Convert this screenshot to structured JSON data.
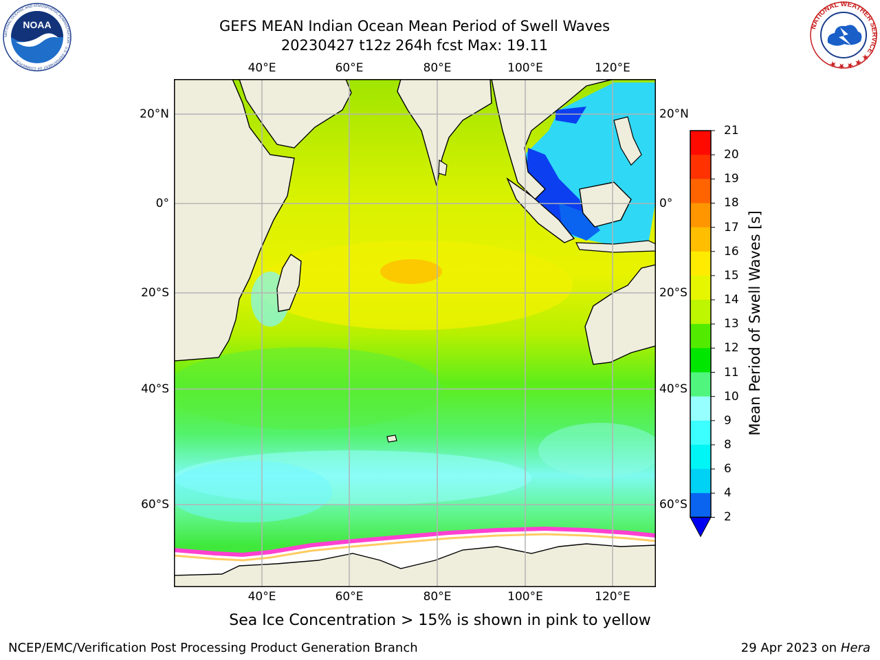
{
  "title": {
    "line1": "GEFS MEAN Indian Ocean Mean Period of Swell Waves",
    "line2": "20230427 t12z 264h fcst   Max: 19.11"
  },
  "logos": {
    "left_org": "NOAA",
    "left_ring": "NATIONAL OCEANIC AND ATMOSPHERIC ADMINISTRATION · U.S. DEPARTMENT OF COMMERCE ·",
    "right_ring": "NATIONAL WEATHER SERVICE ★ ★ ★ ★ ★"
  },
  "map": {
    "region": "Indian Ocean",
    "lon_ticks": [
      "40°E",
      "60°E",
      "80°E",
      "100°E",
      "120°E"
    ],
    "lat_ticks": [
      "20°N",
      "0°",
      "20°S",
      "40°S",
      "60°S"
    ],
    "lon_values": [
      40,
      60,
      80,
      100,
      120
    ],
    "lat_values": [
      20,
      0,
      -20,
      -40,
      -60
    ],
    "lon_range": [
      20,
      130
    ],
    "lat_range": [
      -78,
      27
    ],
    "colors": {
      "land": "#efeedd",
      "ice": "#ffffff",
      "grid": "#b3b3b3",
      "coast": "#000000"
    }
  },
  "colorbar": {
    "title": "Mean Period of Swell Waves [s]",
    "levels": [
      "2",
      "4",
      "6",
      "8",
      "9",
      "10",
      "11",
      "12",
      "13",
      "14",
      "15",
      "16",
      "17",
      "18",
      "19",
      "20",
      "21"
    ],
    "colors": [
      "#0a64f0",
      "#00d2f5",
      "#00f5f5",
      "#3cffff",
      "#96ffff",
      "#50f57d",
      "#00e600",
      "#52eb00",
      "#bef500",
      "#e6f500",
      "#ffeb00",
      "#ffbe00",
      "#ff9600",
      "#ff6400",
      "#ff3200",
      "#ff0a00"
    ],
    "under_color": "#0000f0"
  },
  "caption": "Sea Ice Concentration > 15% is shown in pink to yellow",
  "footer": {
    "left": "NCEP/EMC/Verification Post Processing Product Generation Branch",
    "date": "29 Apr 2023 on ",
    "machine": "Hera"
  }
}
